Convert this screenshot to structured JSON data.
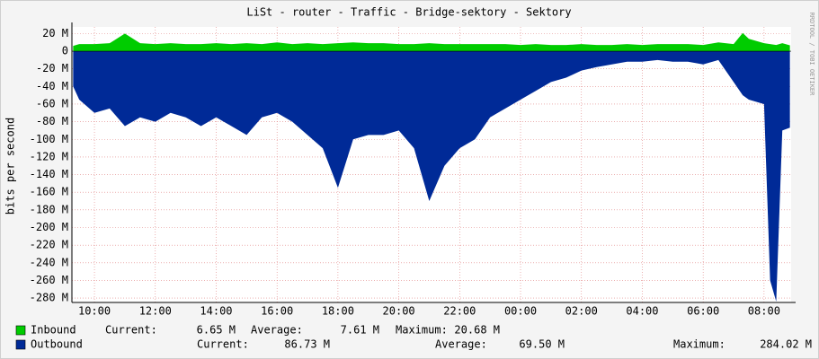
{
  "chart_data": {
    "type": "area",
    "title": "LiSt - router - Traffic - Bridge-sektory - Sektory",
    "y_label": "bits per second",
    "watermark": "RRDTOOL / TOBI OETIKER",
    "xlim": [
      9.26,
      32.89
    ],
    "ylim": [
      -285,
      27.5
    ],
    "grid": true,
    "xticks": [
      {
        "value": 10,
        "label": "10:00"
      },
      {
        "value": 12,
        "label": "12:00"
      },
      {
        "value": 14,
        "label": "14:00"
      },
      {
        "value": 16,
        "label": "16:00"
      },
      {
        "value": 18,
        "label": "18:00"
      },
      {
        "value": 20,
        "label": "20:00"
      },
      {
        "value": 22,
        "label": "22:00"
      },
      {
        "value": 24,
        "label": "00:00"
      },
      {
        "value": 26,
        "label": "02:00"
      },
      {
        "value": 28,
        "label": "04:00"
      },
      {
        "value": 30,
        "label": "06:00"
      },
      {
        "value": 32,
        "label": "08:00"
      }
    ],
    "yticks": [
      {
        "value": 20,
        "label": "20 M"
      },
      0,
      {
        "value": -20,
        "label": "-20 M"
      },
      {
        "value": -40,
        "label": "-40 M"
      },
      {
        "value": -60,
        "label": "-60 M"
      },
      {
        "value": -80,
        "label": "-80 M"
      },
      {
        "value": -100,
        "label": "-100 M"
      },
      {
        "value": -120,
        "label": "-120 M"
      },
      {
        "value": -140,
        "label": "-140 M"
      },
      {
        "value": -160,
        "label": "-160 M"
      },
      {
        "value": -180,
        "label": "-180 M"
      },
      {
        "value": -200,
        "label": "-200 M"
      },
      {
        "value": -220,
        "label": "-220 M"
      },
      {
        "value": -240,
        "label": "-240 M"
      },
      {
        "value": -260,
        "label": "-260 M"
      },
      {
        "value": -280,
        "label": "-280 M"
      }
    ],
    "x": [
      9.3,
      9.5,
      10.0,
      10.5,
      11.0,
      11.5,
      12.0,
      12.5,
      13.0,
      13.5,
      14.0,
      14.5,
      15.0,
      15.5,
      16.0,
      16.5,
      17.0,
      17.5,
      18.0,
      18.5,
      19.0,
      19.5,
      20.0,
      20.5,
      21.0,
      21.5,
      22.0,
      22.5,
      23.0,
      23.5,
      24.0,
      24.5,
      25.0,
      25.5,
      26.0,
      26.5,
      27.0,
      27.5,
      28.0,
      28.5,
      29.0,
      29.5,
      30.0,
      30.5,
      31.0,
      31.3,
      31.5,
      32.0,
      32.2,
      32.4,
      32.6,
      32.85
    ],
    "series": [
      {
        "name": "Inbound",
        "color": "#00cc00",
        "values": [
          6,
          8,
          8,
          9,
          20,
          9,
          8,
          9,
          8,
          8,
          9,
          8,
          9,
          8,
          10,
          8,
          9,
          8,
          9,
          10,
          9,
          9,
          8,
          8,
          9,
          8,
          8,
          8,
          8,
          8,
          7,
          8,
          7,
          7,
          8,
          7,
          7,
          8,
          7,
          8,
          8,
          8,
          7,
          10,
          8,
          20.68,
          14,
          9,
          8,
          7,
          9,
          6.65
        ],
        "stats": [
          {
            "label": "Current:",
            "value": "6.65 M"
          },
          {
            "label": "Average:",
            "value": "7.61 M"
          },
          {
            "label": "Maximum:",
            "value": "20.68 M"
          }
        ]
      },
      {
        "name": "Outbound",
        "color": "#002a97",
        "values": [
          -40,
          -55,
          -70,
          -65,
          -85,
          -75,
          -80,
          -70,
          -75,
          -85,
          -75,
          -85,
          -95,
          -75,
          -70,
          -80,
          -95,
          -110,
          -155,
          -100,
          -95,
          -95,
          -90,
          -110,
          -170,
          -130,
          -110,
          -100,
          -75,
          -65,
          -55,
          -45,
          -35,
          -30,
          -22,
          -18,
          -15,
          -12,
          -12,
          -10,
          -12,
          -12,
          -15,
          -10,
          -35,
          -50,
          -55,
          -60,
          -260,
          -284.02,
          -90,
          -86.73
        ],
        "stats": [
          {
            "label": "Current:",
            "value": "86.73 M"
          },
          {
            "label": "Average:",
            "value": "69.50 M"
          },
          {
            "label": "Maximum:",
            "value": "284.02 M"
          }
        ]
      }
    ]
  }
}
